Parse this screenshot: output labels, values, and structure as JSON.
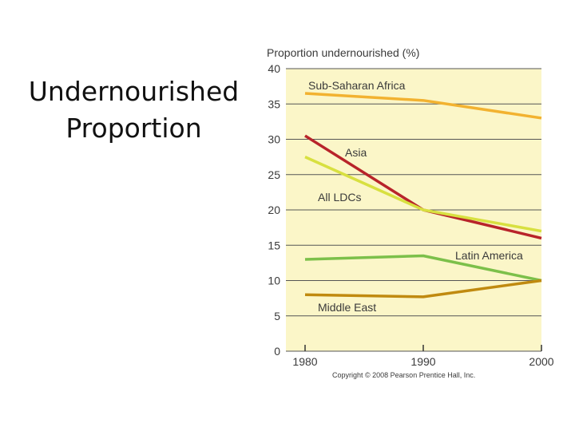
{
  "slide": {
    "title_lines": [
      "Undernourished",
      "Proportion"
    ]
  },
  "chart_data": {
    "type": "line",
    "title": "",
    "ylabel": "Proportion undernourished (%)",
    "xlabel": "",
    "x": [
      1980,
      1990,
      2000
    ],
    "xtick_labels": [
      "1980",
      "1990",
      "2000"
    ],
    "ylim": [
      0,
      40
    ],
    "yticks": [
      0,
      5,
      10,
      15,
      20,
      25,
      30,
      35,
      40
    ],
    "grid": true,
    "background": "#fbf6c8",
    "series": [
      {
        "name": "Sub-Saharan Africa",
        "values": [
          36.5,
          35.5,
          33
        ],
        "color": "#f2b230"
      },
      {
        "name": "Asia",
        "values": [
          30.5,
          20,
          16
        ],
        "color": "#b8242a"
      },
      {
        "name": "All LDCs",
        "values": [
          27.5,
          20,
          17
        ],
        "color": "#d8e040"
      },
      {
        "name": "Latin America",
        "values": [
          13,
          13.5,
          10
        ],
        "color": "#7cc04a"
      },
      {
        "name": "Middle East",
        "values": [
          8,
          7.7,
          10
        ],
        "color": "#c08a10"
      }
    ],
    "copyright": "Copyright © 2008 Pearson Prentice Hall, Inc."
  }
}
